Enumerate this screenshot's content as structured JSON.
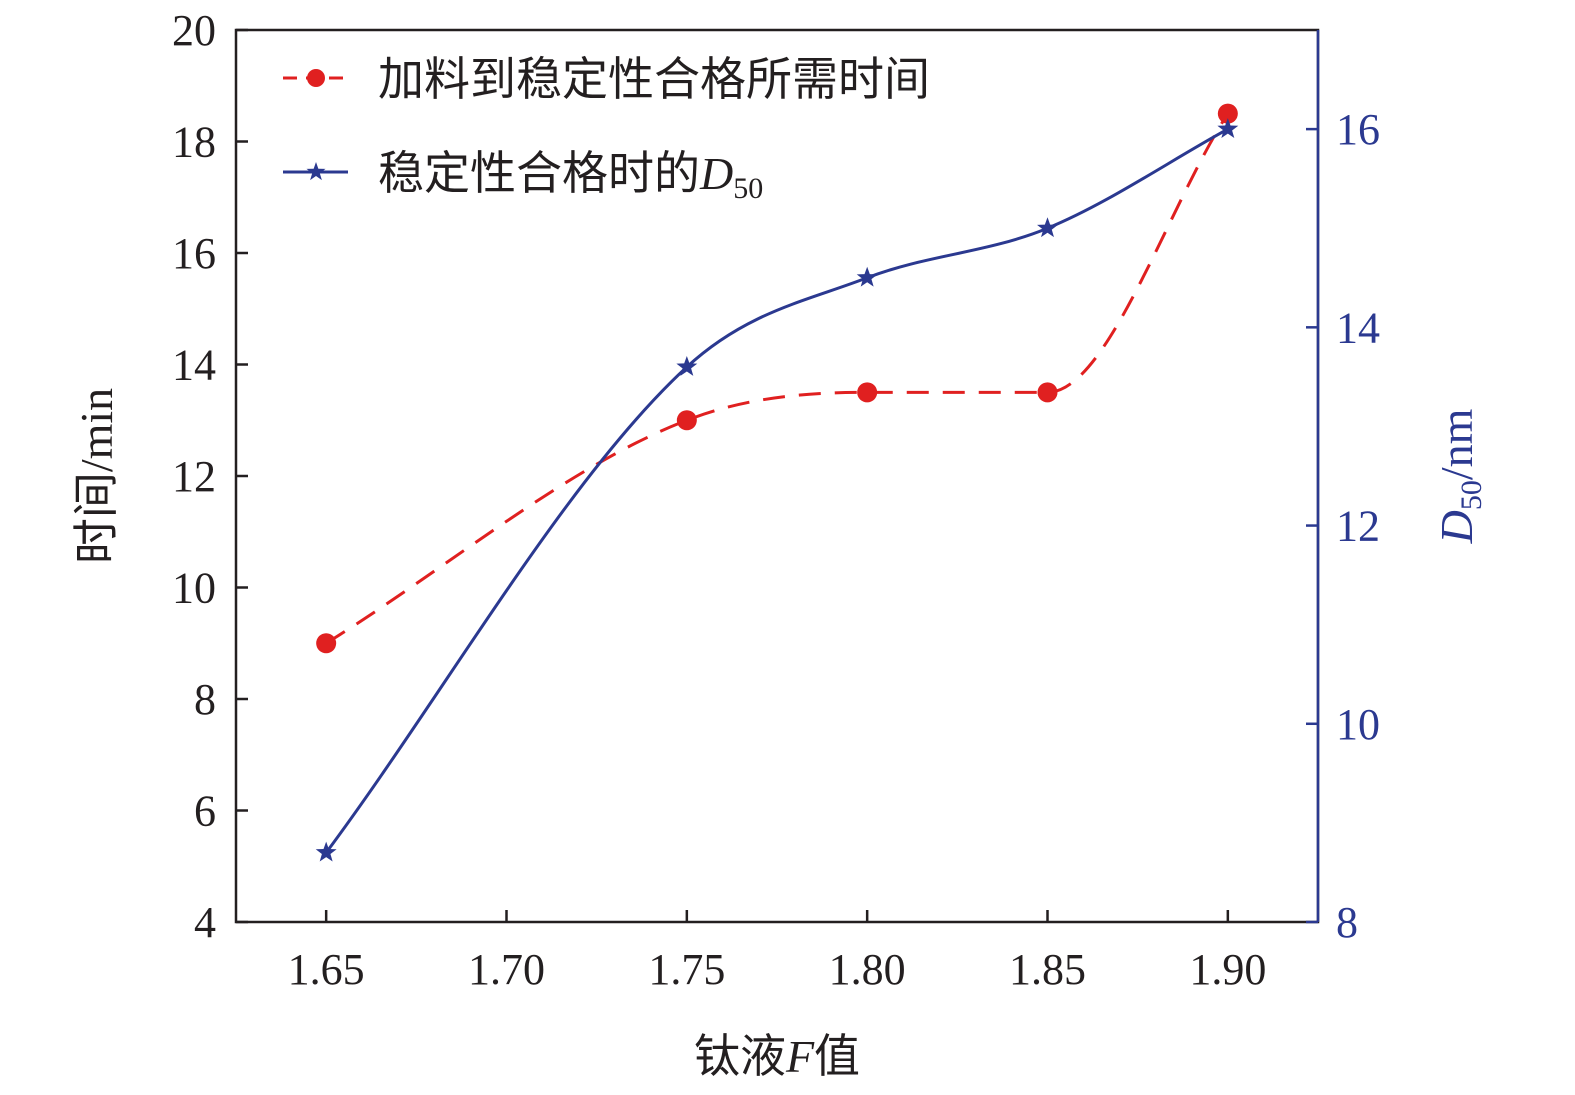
{
  "chart_data": {
    "type": "line",
    "x_values": [
      1.65,
      1.75,
      1.8,
      1.85,
      1.9
    ],
    "x_tick_values": [
      1.65,
      1.7,
      1.75,
      1.8,
      1.85,
      1.9
    ],
    "x_tick_labels": [
      "1.65",
      "1.70",
      "1.75",
      "1.80",
      "1.85",
      "1.90"
    ],
    "xlim": [
      1.625,
      1.925
    ],
    "xlabel": {
      "prefix": "钛液",
      "variable": "F",
      "suffix": "值"
    },
    "ylabel_left": "时间/min",
    "ylim_left": [
      4,
      20
    ],
    "y_left_ticks": [
      4,
      6,
      8,
      10,
      12,
      14,
      16,
      18,
      20
    ],
    "ylabel_right": {
      "variable": "D",
      "subscript": "50",
      "unit": "/nm"
    },
    "ylim_right": [
      8,
      17
    ],
    "y_right_ticks": [
      8,
      10,
      12,
      14,
      16
    ],
    "legend_position": "top-left",
    "series": [
      {
        "name": "加料到稳定性合格所需时间",
        "axis": "left",
        "style": "dashed",
        "marker": "circle",
        "color": "#e02020",
        "values": [
          9.0,
          13.0,
          13.5,
          13.5,
          18.5
        ]
      },
      {
        "name": "稳定性合格时的",
        "name_variable": "D",
        "name_subscript": "50",
        "axis": "right",
        "style": "solid",
        "marker": "star",
        "color": "#2b3990",
        "values": [
          8.7,
          13.6,
          14.5,
          15.0,
          16.0
        ]
      }
    ],
    "colors": {
      "axis": "#231f20",
      "right_axis": "#2b3990"
    }
  }
}
